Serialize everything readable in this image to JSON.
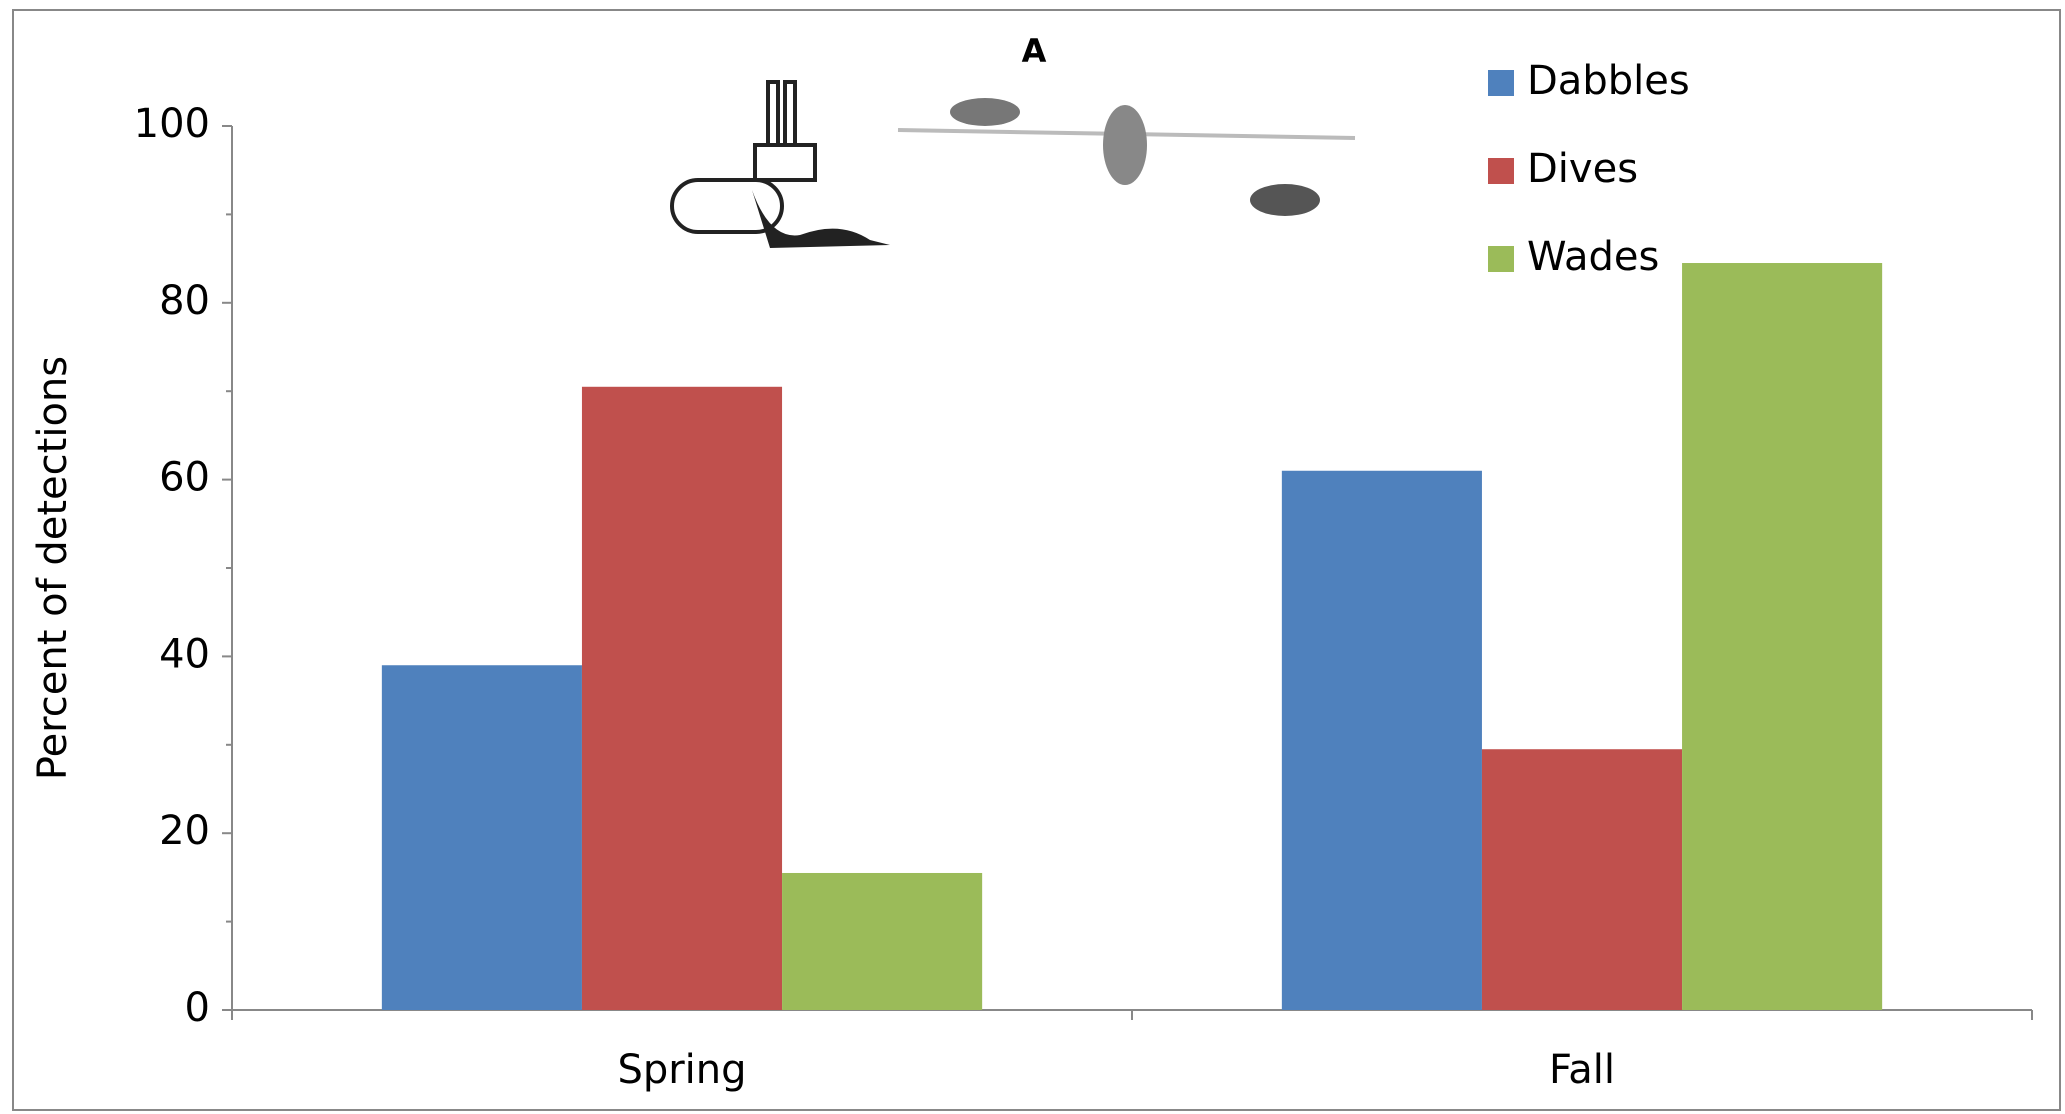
{
  "chart_data": {
    "type": "bar",
    "title": "A",
    "categories": [
      "Spring",
      "Fall"
    ],
    "series": [
      {
        "name": "Dabbles",
        "color": "#4f81bd",
        "values": [
          39,
          61
        ]
      },
      {
        "name": "Dives",
        "color": "#c0504d",
        "values": [
          70.5,
          29.5
        ]
      },
      {
        "name": "Wades",
        "color": "#9bbb59",
        "values": [
          15.5,
          84.5
        ]
      }
    ],
    "y_label": "Percent of detections",
    "ylim": [
      0,
      100
    ],
    "yticks": [
      0,
      20,
      40,
      60,
      80,
      100
    ],
    "legend": "upper right"
  }
}
